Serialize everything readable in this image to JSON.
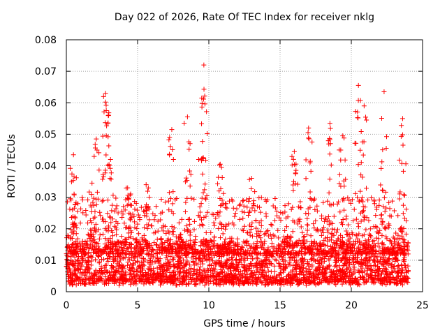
{
  "chart_data": {
    "type": "scatter",
    "title": "Day 022 of 2026, Rate Of TEC Index for receiver nklg",
    "xlabel": "GPS time / hours",
    "ylabel": "ROTI / TECUs",
    "xlim": [
      0,
      25
    ],
    "ylim": [
      0,
      0.08
    ],
    "xticks": [
      0,
      5,
      10,
      15,
      20,
      25
    ],
    "xtick_labels": [
      "0",
      "5",
      "10",
      "15",
      "20",
      "25"
    ],
    "yticks": [
      0,
      0.01,
      0.02,
      0.03,
      0.04,
      0.05,
      0.06,
      0.07,
      0.08
    ],
    "ytick_labels": [
      "0",
      "0.01",
      "0.02",
      "0.03",
      "0.04",
      "0.05",
      "0.06",
      "0.07",
      "0.08"
    ],
    "grid": true,
    "marker": "+",
    "marker_color": "#ff0000",
    "series": [
      {
        "name": "ROTI",
        "x_range": [
          0,
          24
        ],
        "baseline_range": [
          0.002,
          0.015
        ],
        "peaks": [
          {
            "x": 0.5,
            "y": 0.0435
          },
          {
            "x": 1.8,
            "y": 0.0345
          },
          {
            "x": 2.1,
            "y": 0.0485
          },
          {
            "x": 2.75,
            "y": 0.063
          },
          {
            "x": 2.8,
            "y": 0.0575
          },
          {
            "x": 3.1,
            "y": 0.042
          },
          {
            "x": 4.3,
            "y": 0.033
          },
          {
            "x": 5.6,
            "y": 0.034
          },
          {
            "x": 7.4,
            "y": 0.0515
          },
          {
            "x": 8.5,
            "y": 0.0555
          },
          {
            "x": 9.5,
            "y": 0.0615
          },
          {
            "x": 9.65,
            "y": 0.072
          },
          {
            "x": 10.8,
            "y": 0.0405
          },
          {
            "x": 13.0,
            "y": 0.036
          },
          {
            "x": 16.0,
            "y": 0.0445
          },
          {
            "x": 17.0,
            "y": 0.052
          },
          {
            "x": 18.5,
            "y": 0.0535
          },
          {
            "x": 19.4,
            "y": 0.0495
          },
          {
            "x": 20.5,
            "y": 0.0655
          },
          {
            "x": 20.9,
            "y": 0.059
          },
          {
            "x": 22.3,
            "y": 0.0635
          },
          {
            "x": 23.6,
            "y": 0.055
          }
        ]
      }
    ]
  }
}
